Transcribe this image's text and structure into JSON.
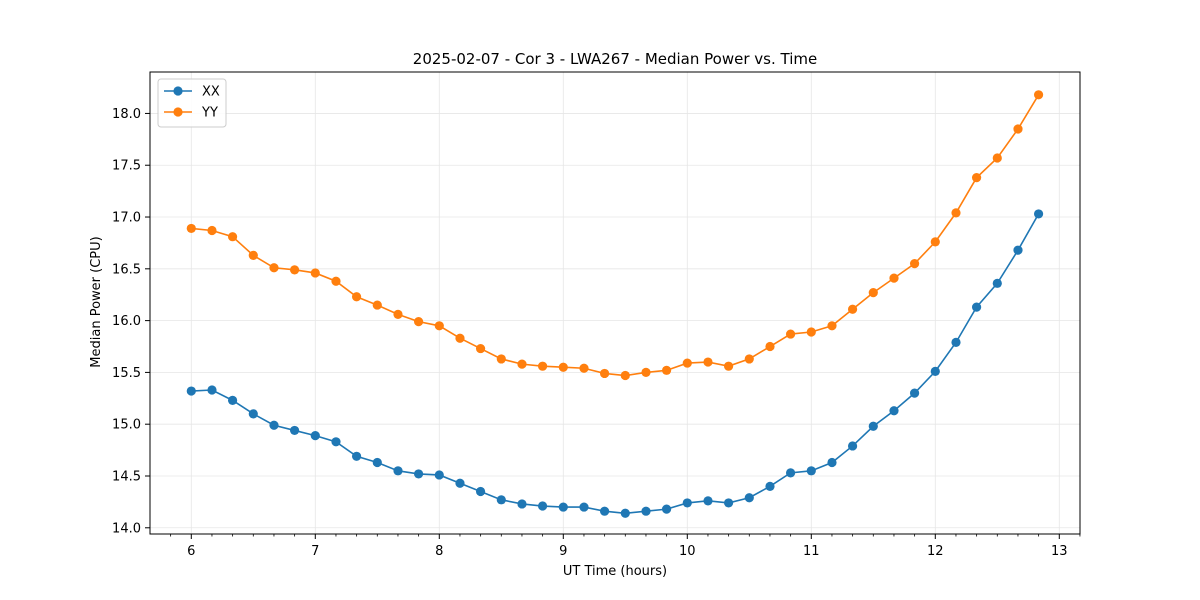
{
  "chart_data": {
    "type": "line",
    "title": "2025-02-07 - Cor 3 - LWA267 - Median Power vs. Time",
    "xlabel": "UT Time (hours)",
    "ylabel": "Median Power (CPU)",
    "xlim": [
      5.667,
      13.167
    ],
    "ylim": [
      13.94,
      18.4
    ],
    "xticks": [
      6,
      7,
      8,
      9,
      10,
      11,
      12,
      13
    ],
    "yticks": [
      14.0,
      14.5,
      15.0,
      15.5,
      16.0,
      16.5,
      17.0,
      17.5,
      18.0
    ],
    "xtick_labels": [
      "6",
      "7",
      "8",
      "9",
      "10",
      "11",
      "12",
      "13"
    ],
    "ytick_labels": [
      "14.0",
      "14.5",
      "15.0",
      "15.5",
      "16.0",
      "16.5",
      "17.0",
      "17.5",
      "18.0"
    ],
    "grid": true,
    "legend_position": "top-left",
    "x": [
      6.0,
      6.167,
      6.333,
      6.5,
      6.667,
      6.833,
      7.0,
      7.167,
      7.333,
      7.5,
      7.667,
      7.833,
      8.0,
      8.167,
      8.333,
      8.5,
      8.667,
      8.833,
      9.0,
      9.167,
      9.333,
      9.5,
      9.667,
      9.833,
      10.0,
      10.167,
      10.333,
      10.5,
      10.667,
      10.833,
      11.0,
      11.167,
      11.333,
      11.5,
      11.667,
      11.833,
      12.0,
      12.167,
      12.333,
      12.5,
      12.667,
      12.833
    ],
    "series": [
      {
        "name": "XX",
        "color": "#1f77b4",
        "values": [
          15.32,
          15.33,
          15.23,
          15.1,
          14.99,
          14.94,
          14.89,
          14.83,
          14.69,
          14.63,
          14.55,
          14.52,
          14.51,
          14.43,
          14.35,
          14.27,
          14.23,
          14.21,
          14.2,
          14.2,
          14.16,
          14.14,
          14.16,
          14.18,
          14.24,
          14.26,
          14.24,
          14.29,
          14.4,
          14.53,
          14.55,
          14.63,
          14.79,
          14.98,
          15.13,
          15.3,
          15.51,
          15.79,
          16.13,
          16.36,
          16.68,
          17.03
        ]
      },
      {
        "name": "YY",
        "color": "#ff7f0e",
        "values": [
          16.89,
          16.87,
          16.81,
          16.63,
          16.51,
          16.49,
          16.46,
          16.38,
          16.23,
          16.15,
          16.06,
          15.99,
          15.95,
          15.83,
          15.73,
          15.63,
          15.58,
          15.56,
          15.55,
          15.54,
          15.49,
          15.47,
          15.5,
          15.52,
          15.59,
          15.6,
          15.56,
          15.63,
          15.75,
          15.87,
          15.89,
          15.95,
          16.11,
          16.27,
          16.41,
          16.55,
          16.76,
          17.04,
          17.38,
          17.57,
          17.85,
          18.18
        ]
      }
    ]
  }
}
